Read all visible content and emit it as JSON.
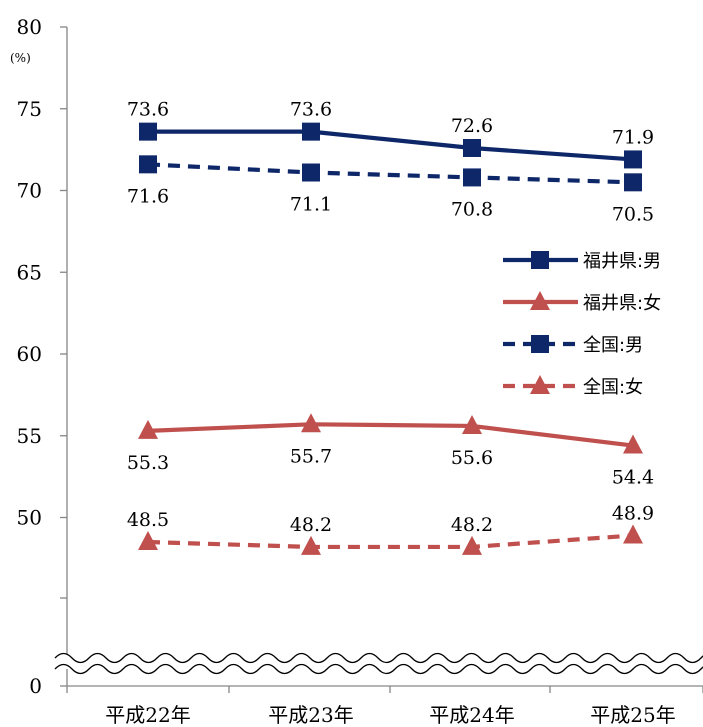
{
  "colors": {
    "navy": "#0d2769",
    "red": "#c0504d",
    "axis": "#868686"
  },
  "chart_data": {
    "type": "line",
    "ylabel": "(%)",
    "ylim": [
      0,
      80
    ],
    "axis_break": "wavy line between 0 and 45 (broken y-axis)",
    "y_ticks": [
      "0",
      "50",
      "55",
      "60",
      "65",
      "70",
      "75",
      "80"
    ],
    "categories": [
      "平成22年",
      "平成23年",
      "平成24年",
      "平成25年"
    ],
    "grid": false,
    "legend_position": "right",
    "series": [
      {
        "name": "福井県:男",
        "values": [
          73.6,
          73.6,
          72.6,
          71.9
        ],
        "labels": [
          "73.6",
          "73.6",
          "72.6",
          "71.9"
        ],
        "color": "#0d2769",
        "marker": "square",
        "dash": "solid",
        "label_pos": "above"
      },
      {
        "name": "福井県:女",
        "values": [
          55.3,
          55.7,
          55.6,
          54.4
        ],
        "labels": [
          "55.3",
          "55.7",
          "55.6",
          "54.4"
        ],
        "color": "#c0504d",
        "marker": "triangle",
        "dash": "solid",
        "label_pos": "below"
      },
      {
        "name": "全国:男",
        "values": [
          71.6,
          71.1,
          70.8,
          70.5
        ],
        "labels": [
          "71.6",
          "71.1",
          "70.8",
          "70.5"
        ],
        "color": "#0d2769",
        "marker": "square",
        "dash": "dashed",
        "label_pos": "below"
      },
      {
        "name": "全国:女",
        "values": [
          48.5,
          48.2,
          48.2,
          48.9
        ],
        "labels": [
          "48.5",
          "48.2",
          "48.2",
          "48.9"
        ],
        "color": "#c0504d",
        "marker": "triangle",
        "dash": "dashed",
        "label_pos": "above"
      }
    ]
  }
}
